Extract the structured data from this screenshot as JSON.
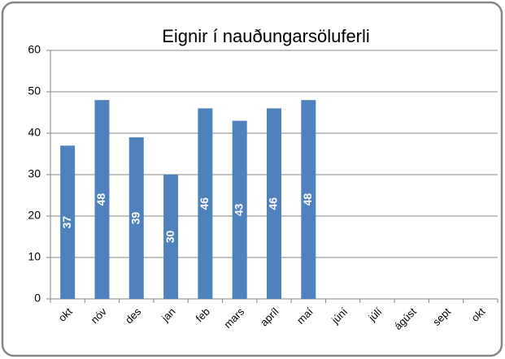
{
  "chart_data": {
    "type": "bar",
    "title": "Eignir í nauðungarsöluferli",
    "categories": [
      "okt",
      "nóv",
      "des",
      "jan",
      "feb",
      "mars",
      "apríl",
      "maí",
      "júní",
      "júlí",
      "ágúst",
      "sept",
      "okt"
    ],
    "values": [
      37,
      48,
      39,
      30,
      46,
      43,
      46,
      48,
      null,
      null,
      null,
      null,
      null
    ],
    "color": "#4f81bd",
    "ylim": [
      0,
      60
    ],
    "yticks": [
      0,
      10,
      20,
      30,
      40,
      50,
      60
    ],
    "grid": true
  }
}
